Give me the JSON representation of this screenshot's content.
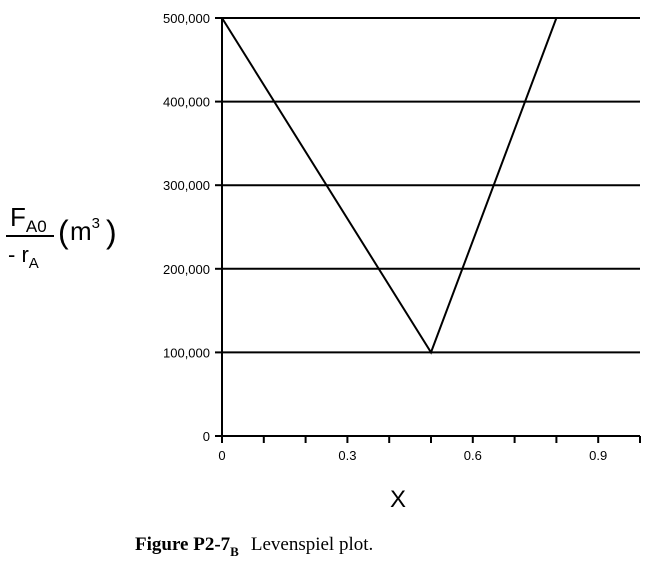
{
  "chart_data": {
    "type": "line",
    "xlabel": "X",
    "ylabel": {
      "num_main": "F",
      "num_sub": "A0",
      "den_main": "- r",
      "den_sub": "A",
      "unit_main": "m",
      "unit_sup": "3"
    },
    "xlim": [
      0,
      1.0
    ],
    "ylim": [
      0,
      500000
    ],
    "x_ticks": [
      0,
      0.1,
      0.2,
      0.3,
      0.4,
      0.5,
      0.6,
      0.7,
      0.8,
      0.9,
      1.0
    ],
    "x_tick_labels": [
      {
        "value": 0,
        "label": "0"
      },
      {
        "value": 0.3,
        "label": "0.3"
      },
      {
        "value": 0.6,
        "label": "0.6"
      },
      {
        "value": 0.9,
        "label": "0.9"
      }
    ],
    "y_ticks": [
      {
        "value": 0,
        "label": "0"
      },
      {
        "value": 100000,
        "label": "100,000"
      },
      {
        "value": 200000,
        "label": "200,000"
      },
      {
        "value": 300000,
        "label": "300,000"
      },
      {
        "value": 400000,
        "label": "400,000"
      },
      {
        "value": 500000,
        "label": "500,000"
      }
    ],
    "grid": "horizontal",
    "series": [
      {
        "x": [
          0,
          0.5,
          0.8
        ],
        "y": [
          500000,
          100000,
          500000
        ]
      }
    ]
  },
  "caption": {
    "bold": "Figure P2-7",
    "bold_sub": "B",
    "text": "Levenspiel plot."
  }
}
